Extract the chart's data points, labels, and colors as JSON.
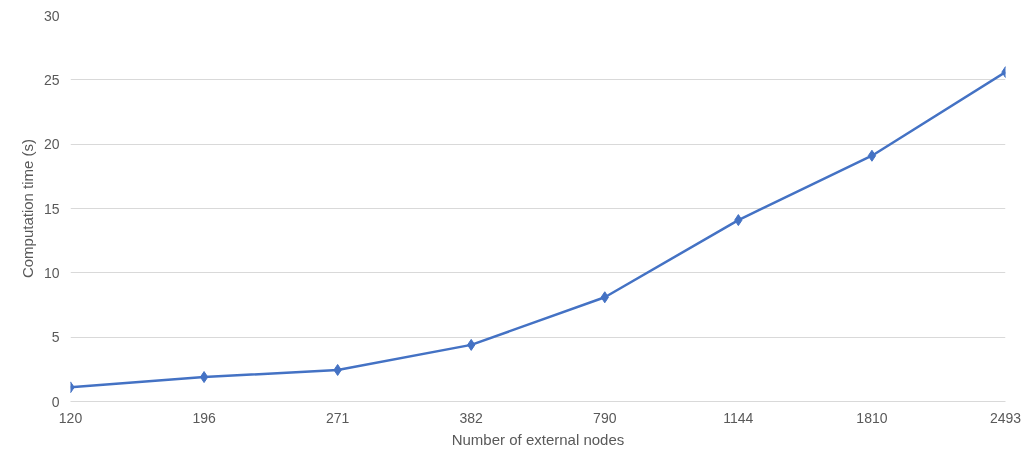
{
  "chart_data": {
    "type": "line",
    "xlabel": "Number of external nodes",
    "ylabel": "Computation time (s)",
    "categories": [
      "120",
      "196",
      "271",
      "382",
      "790",
      "1144",
      "1810",
      "2493"
    ],
    "series": [
      {
        "color": "#4472c4",
        "values": [
          1.1,
          1.9,
          2.45,
          4.4,
          8.1,
          14.1,
          19.1,
          25.6
        ]
      }
    ],
    "ylim": [
      0,
      30
    ],
    "yticks": [
      0,
      5,
      10,
      15,
      20,
      25,
      30
    ],
    "grid": "y",
    "marker": "diamond",
    "line_style": "solid"
  }
}
